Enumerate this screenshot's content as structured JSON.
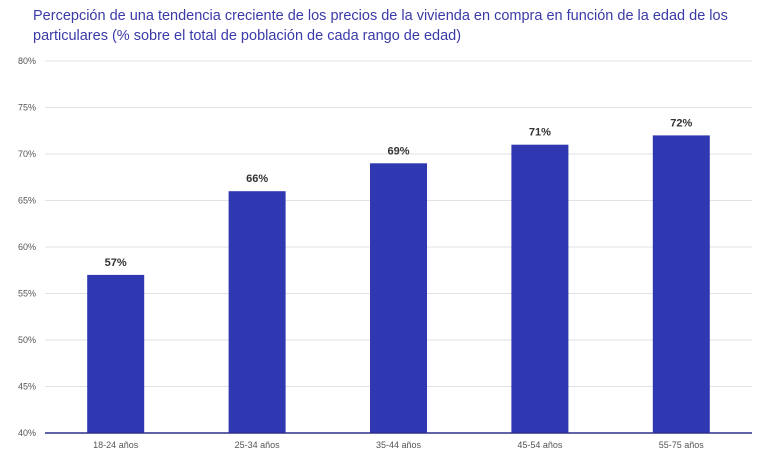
{
  "chart_data": {
    "type": "bar",
    "title": "Percepción de una tendencia creciente de los precios de la vivienda en compra en función de la edad de los particulares (% sobre el total de población de cada rango de edad)",
    "categories": [
      "18-24 años",
      "25-34 años",
      "35-44 años",
      "45-54 años",
      "55-75 años"
    ],
    "values": [
      57,
      66,
      69,
      71,
      72
    ],
    "value_labels": [
      "57%",
      "66%",
      "69%",
      "71%",
      "72%"
    ],
    "ylim": [
      40,
      80
    ],
    "yticks": [
      40,
      45,
      50,
      55,
      60,
      65,
      70,
      75,
      80
    ],
    "ytick_labels": [
      "40%",
      "45%",
      "50%",
      "55%",
      "60%",
      "65%",
      "70%",
      "75%",
      "80%"
    ],
    "xlabel": "",
    "ylabel": "",
    "grid": true,
    "legend": "none",
    "colors": {
      "bar": "#2f38b0",
      "title": "#3a3aa8",
      "axis": "#2e2e8f",
      "grid": "#e2e2e2"
    }
  }
}
